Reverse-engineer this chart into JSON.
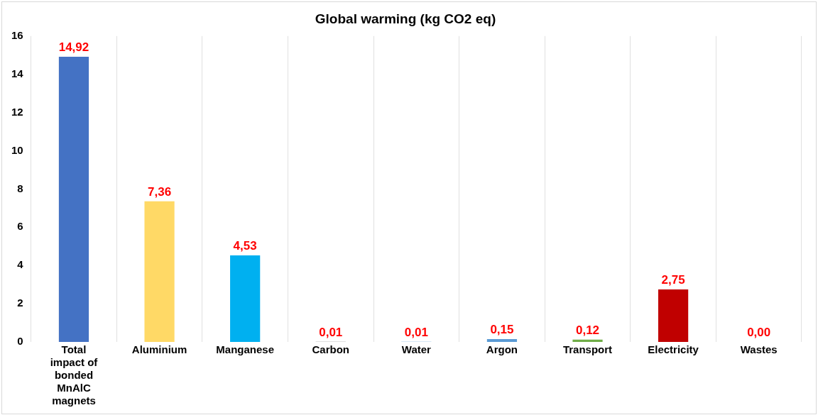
{
  "chart_data": {
    "type": "bar",
    "title": "Global warming (kg CO2 eq)",
    "categories": [
      "Total impact of bonded MnAlC magnets",
      "Aluminium",
      "Manganese",
      "Carbon",
      "Water",
      "Argon",
      "Transport",
      "Electricity",
      "Wastes"
    ],
    "values": [
      14.92,
      7.36,
      4.53,
      0.01,
      0.01,
      0.15,
      0.12,
      2.75,
      0.0
    ],
    "colors": [
      "#4472c4",
      "#ffd966",
      "#00b0f0",
      "#7f7f7f",
      "#5b9bd5",
      "#5b9bd5",
      "#70ad47",
      "#c00000",
      "#a5a5a5"
    ],
    "value_labels": [
      "14,92",
      "7,36",
      "4,53",
      "0,01",
      "0,01",
      "0,15",
      "0,12",
      "2,75",
      "0,00"
    ],
    "ylim": [
      0,
      16
    ],
    "yticks": [
      0,
      2,
      4,
      6,
      8,
      10,
      12,
      14,
      16
    ],
    "grid": "x",
    "legend": false
  }
}
